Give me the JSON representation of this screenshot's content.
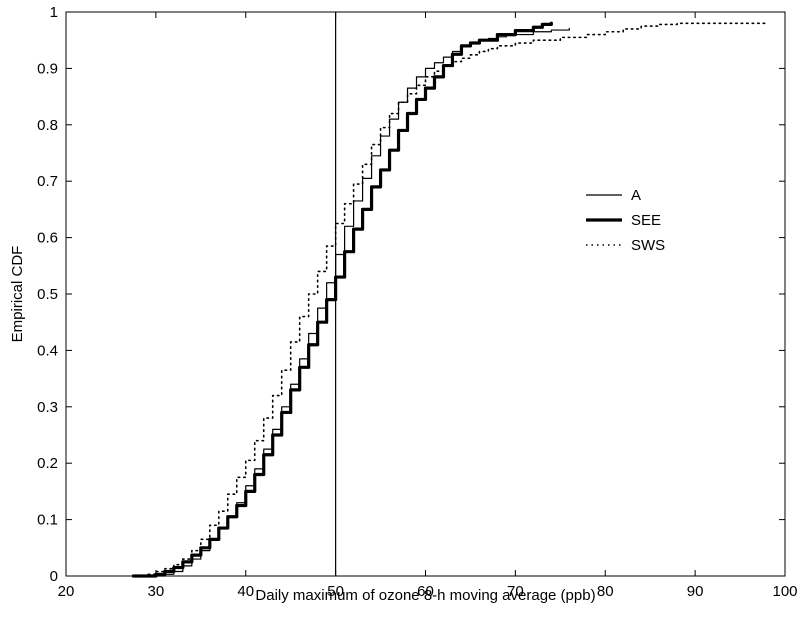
{
  "chart_data": {
    "type": "line",
    "title": "",
    "xlabel": "Daily maximum of ozone 8-h moving average (ppb)",
    "ylabel": "Empirical CDF",
    "xlim": [
      20,
      100
    ],
    "ylim": [
      0,
      1
    ],
    "x_ticks": [
      20,
      30,
      40,
      50,
      60,
      70,
      80,
      90,
      100
    ],
    "y_ticks": [
      0,
      0.1,
      0.2,
      0.3,
      0.4,
      0.5,
      0.6,
      0.7,
      0.8,
      0.9,
      1
    ],
    "y_tick_labels": [
      "0",
      "0.1",
      "0.2",
      "0.3",
      "0.4",
      "0.5",
      "0.6",
      "0.7",
      "0.8",
      "0.9",
      "1"
    ],
    "grid": false,
    "legend_position": "right",
    "reference_line_x": 50,
    "series": [
      {
        "name": "A",
        "style": "solid-thin",
        "x": [
          27.5,
          30,
          31,
          32,
          33,
          34,
          35,
          36,
          37,
          38,
          39,
          40,
          41,
          42,
          43,
          44,
          45,
          46,
          47,
          48,
          49,
          50,
          51,
          52,
          53,
          54,
          55,
          56,
          57,
          58,
          59,
          60,
          61,
          62,
          63,
          64,
          65,
          66,
          67,
          68,
          69,
          70,
          72,
          74,
          76
        ],
        "y": [
          0.0,
          0.0,
          0.003,
          0.008,
          0.018,
          0.03,
          0.045,
          0.065,
          0.085,
          0.105,
          0.13,
          0.16,
          0.19,
          0.225,
          0.26,
          0.3,
          0.34,
          0.385,
          0.43,
          0.475,
          0.52,
          0.57,
          0.62,
          0.665,
          0.705,
          0.745,
          0.78,
          0.81,
          0.84,
          0.865,
          0.885,
          0.9,
          0.91,
          0.92,
          0.93,
          0.94,
          0.945,
          0.95,
          0.953,
          0.956,
          0.958,
          0.96,
          0.965,
          0.968,
          0.971
        ]
      },
      {
        "name": "SEE",
        "style": "solid-thick",
        "x": [
          27.5,
          30,
          31,
          32,
          33,
          34,
          35,
          36,
          37,
          38,
          39,
          40,
          41,
          42,
          43,
          44,
          45,
          46,
          47,
          48,
          49,
          50,
          51,
          52,
          53,
          54,
          55,
          56,
          57,
          58,
          59,
          60,
          61,
          62,
          63,
          64,
          65,
          66,
          68,
          70,
          72,
          73,
          74
        ],
        "y": [
          0.0,
          0.003,
          0.008,
          0.015,
          0.025,
          0.037,
          0.05,
          0.065,
          0.085,
          0.105,
          0.125,
          0.15,
          0.18,
          0.215,
          0.25,
          0.29,
          0.33,
          0.37,
          0.41,
          0.45,
          0.49,
          0.53,
          0.575,
          0.615,
          0.65,
          0.69,
          0.72,
          0.755,
          0.79,
          0.82,
          0.845,
          0.865,
          0.885,
          0.905,
          0.925,
          0.94,
          0.945,
          0.95,
          0.96,
          0.967,
          0.973,
          0.978,
          0.98
        ]
      },
      {
        "name": "SWS",
        "style": "dotted",
        "x": [
          27.5,
          29,
          30,
          31,
          32,
          33,
          34,
          35,
          36,
          37,
          38,
          39,
          40,
          41,
          42,
          43,
          44,
          45,
          46,
          47,
          48,
          49,
          50,
          51,
          52,
          53,
          54,
          55,
          56,
          57,
          58,
          59,
          60,
          61,
          62,
          63,
          64,
          65,
          66,
          67,
          68,
          70,
          72,
          75,
          78,
          80,
          82,
          84,
          86,
          88,
          90,
          94,
          98
        ],
        "y": [
          0.0,
          0.003,
          0.008,
          0.013,
          0.02,
          0.03,
          0.045,
          0.065,
          0.09,
          0.115,
          0.145,
          0.175,
          0.205,
          0.24,
          0.28,
          0.32,
          0.365,
          0.415,
          0.46,
          0.5,
          0.54,
          0.585,
          0.625,
          0.66,
          0.695,
          0.73,
          0.765,
          0.795,
          0.82,
          0.84,
          0.855,
          0.87,
          0.885,
          0.895,
          0.905,
          0.912,
          0.918,
          0.924,
          0.93,
          0.935,
          0.94,
          0.945,
          0.95,
          0.955,
          0.96,
          0.965,
          0.97,
          0.975,
          0.978,
          0.98,
          0.98,
          0.98,
          0.98
        ]
      }
    ]
  }
}
